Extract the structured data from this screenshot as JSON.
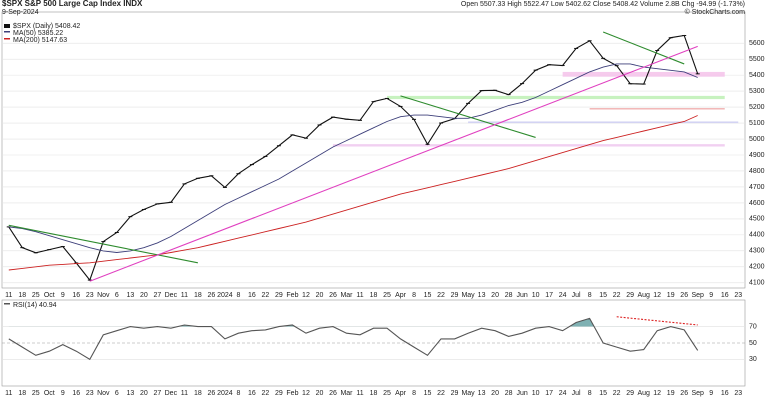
{
  "chart_data": [
    {
      "type": "line",
      "title": "$SPX S&P 500 Large Cap Index INDX",
      "subtitle": "9-Sep-2024",
      "annotations": [
        "Open 5507.33 High 5522.47 Low 5402.62 Close 5408.42 Volume 2.8B Chg -94.99 (-1.73%)",
        "© StockCharts.com"
      ],
      "categories": [
        "11",
        "18",
        "25",
        "Oct",
        "9",
        "16",
        "23",
        "Nov",
        "6",
        "13",
        "20",
        "27",
        "Dec",
        "11",
        "18",
        "26",
        "2024",
        "8",
        "16",
        "22",
        "29",
        "Feb",
        "12",
        "20",
        "26",
        "Mar",
        "11",
        "18",
        "25",
        "Apr",
        "8",
        "15",
        "22",
        "29",
        "May",
        "13",
        "20",
        "28",
        "Jun",
        "10",
        "17",
        "24",
        "Jul",
        "8",
        "15",
        "22",
        "29",
        "Aug",
        "12",
        "19",
        "26",
        "Sep",
        "9",
        "16",
        "23"
      ],
      "series": [
        {
          "name": "$SPX (Daily) 5408.42",
          "color": "#111111",
          "values": [
            4450,
            4320,
            4288,
            4308,
            4327,
            4224,
            4117,
            4358,
            4415,
            4514,
            4559,
            4594,
            4604,
            4719,
            4754,
            4770,
            4697,
            4783,
            4840,
            4891,
            4958,
            5026,
            5005,
            5088,
            5137,
            5124,
            5117,
            5234,
            5254,
            5204,
            5123,
            4967,
            5100,
            5128,
            5223,
            5303,
            5305,
            5278,
            5347,
            5431,
            5465,
            5460,
            5567,
            5615,
            5505,
            5459,
            5346,
            5344,
            5554,
            5634,
            5648,
            5408,
            null,
            null,
            null
          ]
        },
        {
          "name": "MA(50) 5385.22",
          "color": "#3d3f7a",
          "values": [
            4450,
            4440,
            4420,
            4395,
            4370,
            4345,
            4320,
            4300,
            4290,
            4300,
            4320,
            4350,
            4390,
            4440,
            4490,
            4540,
            4590,
            4630,
            4670,
            4710,
            4750,
            4800,
            4850,
            4900,
            4950,
            4990,
            5030,
            5070,
            5110,
            5140,
            5150,
            5150,
            5140,
            5130,
            5130,
            5150,
            5180,
            5210,
            5230,
            5260,
            5300,
            5340,
            5380,
            5420,
            5450,
            5470,
            5470,
            5450,
            5440,
            5430,
            5420,
            5385,
            null,
            null,
            null
          ]
        },
        {
          "name": "MA(200) 5147.63",
          "color": "#cc2222",
          "values": [
            4180,
            4190,
            4200,
            4210,
            4215,
            4220,
            4225,
            4235,
            4245,
            4255,
            4265,
            4275,
            4290,
            4305,
            4320,
            4340,
            4360,
            4380,
            4400,
            4420,
            4440,
            4460,
            4480,
            4505,
            4530,
            4555,
            4580,
            4605,
            4630,
            4655,
            4675,
            4695,
            4715,
            4735,
            4755,
            4775,
            4795,
            4815,
            4840,
            4865,
            4890,
            4915,
            4940,
            4965,
            4990,
            5010,
            5030,
            5050,
            5070,
            5090,
            5110,
            5147,
            null,
            null,
            null
          ]
        }
      ],
      "trendlines": [
        {
          "color": "#2e8b2e",
          "x": [
            0,
            14
          ],
          "y": [
            4460,
            4225
          ]
        },
        {
          "color": "#2e8b2e",
          "x": [
            29,
            39
          ],
          "y": [
            5270,
            5010
          ]
        },
        {
          "color": "#2e8b2e",
          "x": [
            44,
            50
          ],
          "y": [
            5670,
            5470
          ]
        },
        {
          "color": "#e040c0",
          "x": [
            6,
            51
          ],
          "y": [
            4110,
            5580
          ]
        }
      ],
      "zones": [
        {
          "color": "#f5c2ea",
          "x": [
            41,
            53
          ],
          "y": [
            5390,
            5420
          ]
        },
        {
          "color": "#bdf0b4",
          "x": [
            28,
            53
          ],
          "y": [
            5250,
            5270
          ]
        },
        {
          "color": "#e88080",
          "x": [
            43,
            53
          ],
          "y": [
            5190,
            5192
          ]
        },
        {
          "color": "#ccccf2",
          "x": [
            34,
            54
          ],
          "y": [
            5100,
            5110
          ]
        },
        {
          "color": "#efc8ef",
          "x": [
            24,
            53
          ],
          "y": [
            4953,
            4968
          ]
        }
      ],
      "ylim": [
        4080,
        5720
      ],
      "yticks": [
        4100,
        4200,
        4300,
        4400,
        4500,
        4600,
        4700,
        4800,
        4900,
        5000,
        5100,
        5200,
        5300,
        5400,
        5500,
        5600
      ],
      "grid": true
    },
    {
      "type": "line",
      "series": [
        {
          "name": "RSI(14) 40.94",
          "color": "#555555",
          "values": [
            55,
            45,
            35,
            40,
            48,
            40,
            30,
            60,
            65,
            70,
            68,
            70,
            68,
            72,
            70,
            70,
            55,
            62,
            65,
            66,
            70,
            72,
            62,
            68,
            70,
            62,
            60,
            68,
            68,
            55,
            45,
            35,
            55,
            55,
            62,
            68,
            65,
            58,
            62,
            68,
            70,
            65,
            75,
            80,
            50,
            45,
            40,
            42,
            65,
            70,
            66,
            41,
            null,
            null,
            null
          ]
        }
      ],
      "fill_color": "#5f9ea0",
      "trendlines": [
        {
          "color": "#dd2222",
          "x": [
            45,
            51
          ],
          "y": [
            82,
            72
          ]
        }
      ],
      "ylim": [
        0,
        100
      ],
      "yticks": [
        30,
        50,
        70
      ],
      "grid": true
    }
  ]
}
